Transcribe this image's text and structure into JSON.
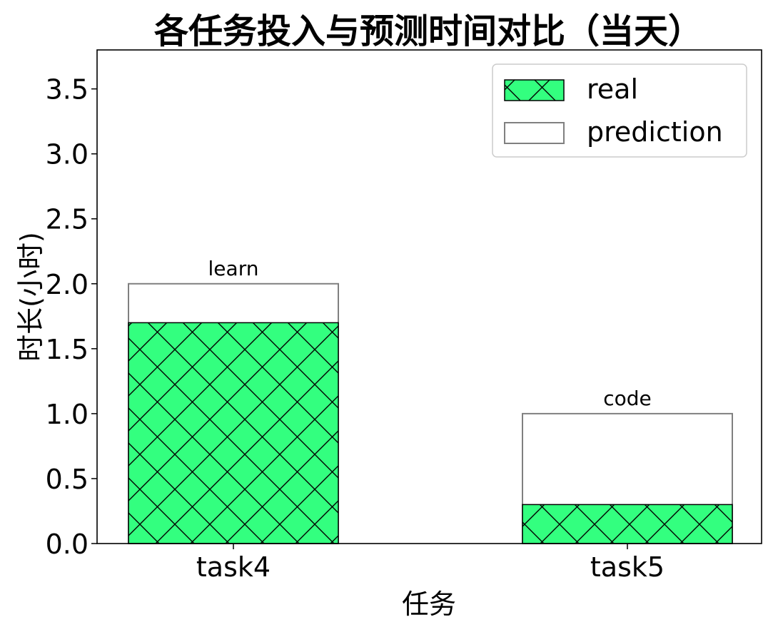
{
  "chart_data": {
    "type": "bar",
    "title": "各任务投入与预测时间对比（当天）",
    "xlabel": "任务",
    "ylabel": "时长(小时)",
    "categories": [
      "task4",
      "task5"
    ],
    "annotations": [
      "learn",
      "code"
    ],
    "series": [
      {
        "name": "real",
        "values": [
          1.7,
          0.3
        ]
      },
      {
        "name": "prediction",
        "values": [
          2.0,
          1.0
        ]
      }
    ],
    "ylim": [
      0,
      3.8
    ],
    "yticks": [
      "0.0",
      "0.5",
      "1.0",
      "1.5",
      "2.0",
      "2.5",
      "3.0",
      "3.5"
    ],
    "grid": false,
    "legend": "top-right",
    "colors": {
      "real_fill": "#33ff7f",
      "real_edge": "#000000",
      "prediction_fill": "#ffffff",
      "prediction_edge": "#808080"
    }
  }
}
